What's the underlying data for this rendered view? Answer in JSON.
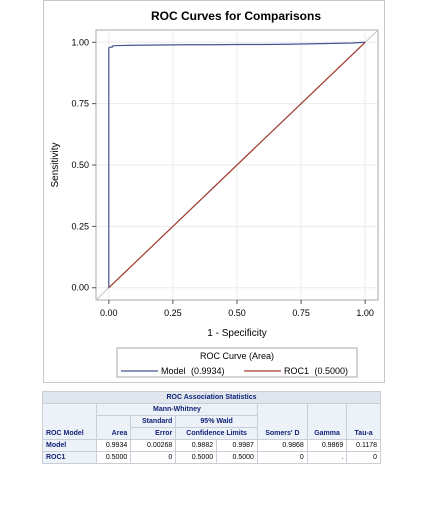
{
  "chart_data": {
    "type": "line",
    "title": "ROC Curves for Comparisons",
    "xlabel": "1 - Specificity",
    "ylabel": "Sensitivity",
    "xlim": [
      -0.05,
      1.05
    ],
    "ylim": [
      -0.05,
      1.05
    ],
    "xticks": [
      "0.00",
      "0.25",
      "0.50",
      "0.75",
      "1.00"
    ],
    "yticks": [
      "0.00",
      "0.25",
      "0.50",
      "0.75",
      "1.00"
    ],
    "grid": true,
    "legend_title": "ROC Curve (Area)",
    "legend_placement": "bottom",
    "series": [
      {
        "name": "Model",
        "legend_value": "(0.9934)",
        "color": "#445694",
        "x": [
          0,
          0,
          0.002,
          0.004,
          0.006,
          0.008,
          0.01,
          0.012,
          0.014,
          0.016,
          0.02,
          0.06,
          0.1,
          0.2,
          0.3,
          0.4,
          0.5,
          0.6,
          0.7,
          0.8,
          0.9,
          0.95,
          0.98,
          1.0
        ],
        "y": [
          0,
          0.977,
          0.978,
          0.98,
          0.98,
          0.98,
          0.981,
          0.98,
          0.981,
          0.985,
          0.986,
          0.987,
          0.988,
          0.989,
          0.99,
          0.99,
          0.991,
          0.991,
          0.992,
          0.994,
          0.996,
          0.997,
          0.999,
          1.0
        ]
      },
      {
        "name": "ROC1",
        "legend_value": "(0.5000)",
        "color": "#a23a2e",
        "x": [
          0,
          1
        ],
        "y": [
          0,
          1
        ]
      }
    ]
  },
  "stats_table": {
    "caption": "ROC Association Statistics",
    "mann_whitney": "Mann-Whitney",
    "headers": {
      "roc_model": "ROC Model",
      "area": "Area",
      "std_error_1": "Standard",
      "std_error_2": "Error",
      "wald_1": "95% Wald",
      "wald_2": "Confidence Limits",
      "somers": "Somers' D",
      "gamma": "Gamma",
      "tau": "Tau-a"
    },
    "rows": [
      {
        "model": "Model",
        "area": "0.9934",
        "se": "0.00268",
        "lcl": "0.9882",
        "ucl": "0.9987",
        "somers": "0.9868",
        "gamma": "0.9869",
        "tau": "0.1178"
      },
      {
        "model": "ROC1",
        "area": "0.5000",
        "se": "0",
        "lcl": "0.5000",
        "ucl": "0.5000",
        "somers": "0",
        "gamma": ".",
        "tau": "0"
      }
    ]
  }
}
